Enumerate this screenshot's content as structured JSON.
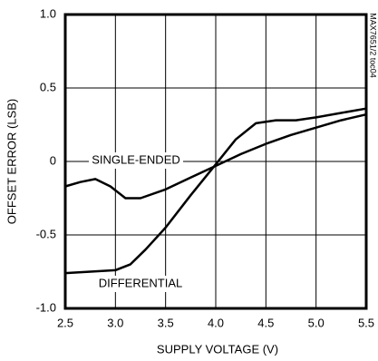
{
  "chart_data": {
    "type": "line",
    "xlabel": "SUPPLY VOLTAGE (V)",
    "ylabel": "OFFSET ERROR (LSB)",
    "annotations": [
      "SINGLE-ENDED",
      "DIFFERENTIAL",
      "MAX7651/2 toc04"
    ],
    "series": [
      {
        "name": "SINGLE-ENDED",
        "color": "#000000",
        "x": [
          2.5,
          2.65,
          2.8,
          2.95,
          3.1,
          3.25,
          3.5,
          3.75,
          4.0,
          4.25,
          4.5,
          4.75,
          5.0,
          5.25,
          5.5
        ],
        "values": [
          -0.17,
          -0.14,
          -0.12,
          -0.17,
          -0.25,
          -0.25,
          -0.19,
          -0.11,
          -0.03,
          0.05,
          0.12,
          0.18,
          0.23,
          0.28,
          0.32
        ]
      },
      {
        "name": "DIFFERENTIAL",
        "color": "#000000",
        "x": [
          2.5,
          2.75,
          3.0,
          3.15,
          3.3,
          3.5,
          3.75,
          4.0,
          4.2,
          4.4,
          4.6,
          4.8,
          5.0,
          5.25,
          5.5
        ],
        "values": [
          -0.76,
          -0.75,
          -0.74,
          -0.7,
          -0.6,
          -0.45,
          -0.23,
          -0.02,
          0.15,
          0.26,
          0.28,
          0.28,
          0.3,
          0.33,
          0.36
        ]
      }
    ],
    "xlim": [
      2.5,
      5.5
    ],
    "xticks": [
      2.5,
      {
        "value": 3,
        "label": "3.0"
      },
      3.5,
      {
        "value": 4,
        "label": "4.0"
      },
      4.5,
      {
        "value": 5,
        "label": "5.0"
      },
      5.5
    ],
    "ylim": [
      -1,
      1
    ],
    "yticks": [
      {
        "value": -1,
        "label": "-1.0"
      },
      -0.5,
      0,
      0.5,
      {
        "value": 1,
        "label": "1.0"
      }
    ],
    "grid": true
  }
}
